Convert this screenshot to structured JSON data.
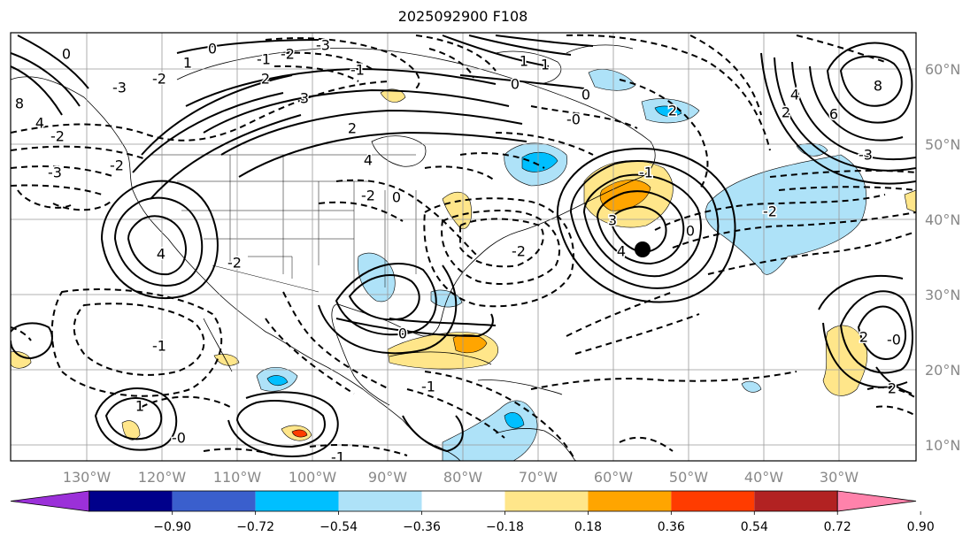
{
  "title": "2025092900 F108",
  "map": {
    "lon_labels": [
      "130°W",
      "120°W",
      "110°W",
      "100°W",
      "90°W",
      "80°W",
      "70°W",
      "60°W",
      "50°W",
      "40°W",
      "30°W"
    ],
    "lat_labels": [
      "60°N",
      "50°N",
      "40°N",
      "30°N",
      "20°N",
      "10°N"
    ],
    "contour_labels": [
      {
        "text": "-3"
      },
      {
        "text": "-2"
      },
      {
        "text": "-1"
      },
      {
        "text": "0"
      },
      {
        "text": "1"
      },
      {
        "text": "2"
      },
      {
        "text": "-2"
      },
      {
        "text": "-3"
      },
      {
        "text": "8"
      },
      {
        "text": "4"
      },
      {
        "text": "-2"
      },
      {
        "text": "0"
      },
      {
        "text": "-2"
      },
      {
        "text": "-3"
      },
      {
        "text": "3"
      },
      {
        "text": "2"
      },
      {
        "text": "4"
      },
      {
        "text": "-2"
      },
      {
        "text": "0"
      },
      {
        "text": "4"
      },
      {
        "text": "-1"
      },
      {
        "text": "-2"
      },
      {
        "text": "3"
      },
      {
        "text": "4"
      },
      {
        "text": "-1"
      },
      {
        "text": "0"
      },
      {
        "text": "-2"
      },
      {
        "text": "0"
      },
      {
        "text": "-1"
      },
      {
        "text": "1"
      },
      {
        "text": "1"
      },
      {
        "text": "0"
      },
      {
        "text": "-0"
      },
      {
        "text": "8"
      },
      {
        "text": "6"
      },
      {
        "text": "4"
      },
      {
        "text": "2"
      },
      {
        "text": "-3"
      },
      {
        "text": "-2"
      },
      {
        "text": "2"
      },
      {
        "text": "2"
      },
      {
        "text": "-0"
      },
      {
        "text": "2"
      },
      {
        "text": "-1"
      },
      {
        "text": "0"
      },
      {
        "text": "1"
      },
      {
        "text": "-0"
      },
      {
        "text": "-1"
      }
    ]
  },
  "colorbar": {
    "colors": [
      "#9b30d9",
      "#00008b",
      "#3a5fcd",
      "#00bfff",
      "#aee2f8",
      "#ffffff",
      "#ffe68a",
      "#ffa500",
      "#ff3c00",
      "#b22222",
      "#ff82ab"
    ],
    "tick_labels": [
      "−0.90",
      "−0.72",
      "−0.54",
      "−0.36",
      "−0.18",
      "0.18",
      "0.36",
      "0.54",
      "0.72",
      "0.90"
    ]
  }
}
